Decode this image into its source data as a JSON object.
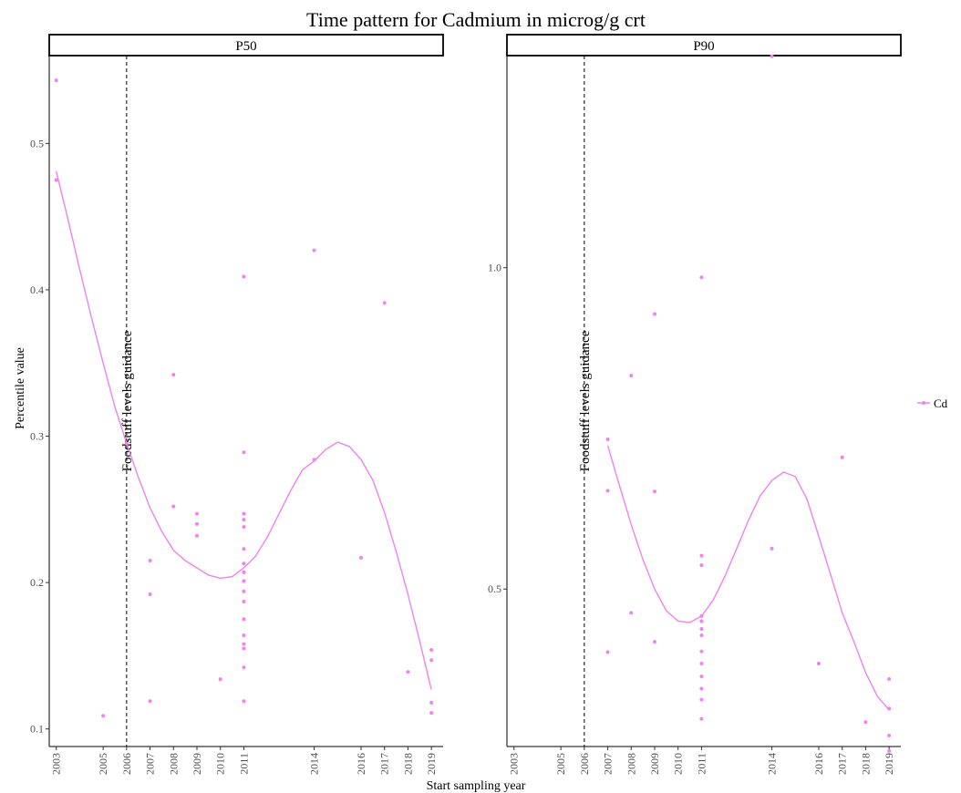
{
  "chart_data": {
    "type": "scatter",
    "title": "Time pattern for Cadmium in microg/g crt",
    "xlabel": "Start sampling year",
    "ylabel": "Percentile value",
    "x_ticks": [
      "2003",
      "2005",
      "2006",
      "2007",
      "2008",
      "2009",
      "2010",
      "2011",
      "2014",
      "2016",
      "2017",
      "2018",
      "2019"
    ],
    "reference_line": {
      "x": 2006,
      "label": "Foodstuff levels guidance",
      "style": "dashed"
    },
    "legend": {
      "position": "right",
      "entries": [
        {
          "name": "Cd",
          "color": "#ee82ee"
        }
      ]
    },
    "series_color": "#ee82ee",
    "panels": [
      {
        "strip": "P50",
        "ylim": [
          0.088,
          0.56
        ],
        "y_ticks": [
          "0.1",
          "0.2",
          "0.3",
          "0.4",
          "0.5"
        ],
        "y_tick_values": [
          0.1,
          0.2,
          0.3,
          0.4,
          0.5
        ],
        "points": [
          [
            2003,
            0.543
          ],
          [
            2003,
            0.475
          ],
          [
            2005,
            0.109
          ],
          [
            2006,
            0.295
          ],
          [
            2007,
            0.215
          ],
          [
            2007,
            0.192
          ],
          [
            2007,
            0.119
          ],
          [
            2008,
            0.342
          ],
          [
            2008,
            0.252
          ],
          [
            2009,
            0.247
          ],
          [
            2009,
            0.24
          ],
          [
            2009,
            0.232
          ],
          [
            2010,
            0.134
          ],
          [
            2011,
            0.409
          ],
          [
            2011,
            0.289
          ],
          [
            2011,
            0.247
          ],
          [
            2011,
            0.243
          ],
          [
            2011,
            0.238
          ],
          [
            2011,
            0.223
          ],
          [
            2011,
            0.213
          ],
          [
            2011,
            0.207
          ],
          [
            2011,
            0.201
          ],
          [
            2011,
            0.194
          ],
          [
            2011,
            0.187
          ],
          [
            2011,
            0.175
          ],
          [
            2011,
            0.164
          ],
          [
            2011,
            0.158
          ],
          [
            2011,
            0.155
          ],
          [
            2011,
            0.142
          ],
          [
            2011,
            0.119
          ],
          [
            2014,
            0.427
          ],
          [
            2014,
            0.284
          ],
          [
            2016,
            0.217
          ],
          [
            2017,
            0.391
          ],
          [
            2018,
            0.139
          ],
          [
            2019,
            0.154
          ],
          [
            2019,
            0.147
          ],
          [
            2019,
            0.118
          ],
          [
            2019,
            0.111
          ]
        ],
        "smooth": [
          [
            2003,
            0.481
          ],
          [
            2003.5,
            0.448
          ],
          [
            2004,
            0.414
          ],
          [
            2004.5,
            0.381
          ],
          [
            2005,
            0.35
          ],
          [
            2005.5,
            0.32
          ],
          [
            2006,
            0.295
          ],
          [
            2006.5,
            0.272
          ],
          [
            2007,
            0.251
          ],
          [
            2007.5,
            0.235
          ],
          [
            2008,
            0.222
          ],
          [
            2008.5,
            0.215
          ],
          [
            2009,
            0.21
          ],
          [
            2009.5,
            0.205
          ],
          [
            2010,
            0.203
          ],
          [
            2010.5,
            0.204
          ],
          [
            2011,
            0.21
          ],
          [
            2011.5,
            0.218
          ],
          [
            2012,
            0.231
          ],
          [
            2012.5,
            0.247
          ],
          [
            2013,
            0.263
          ],
          [
            2013.5,
            0.277
          ],
          [
            2014,
            0.283
          ],
          [
            2014.5,
            0.291
          ],
          [
            2015,
            0.296
          ],
          [
            2015.5,
            0.293
          ],
          [
            2016,
            0.284
          ],
          [
            2016.5,
            0.27
          ],
          [
            2017,
            0.248
          ],
          [
            2017.5,
            0.221
          ],
          [
            2018,
            0.192
          ],
          [
            2018.5,
            0.16
          ],
          [
            2019,
            0.127
          ]
        ]
      },
      {
        "strip": "P90",
        "ylim": [
          0.255,
          1.33
        ],
        "y_ticks": [
          "0.5",
          "1.0"
        ],
        "y_tick_values": [
          0.5,
          1.0
        ],
        "points": [
          [
            2007,
            0.733
          ],
          [
            2007,
            0.653
          ],
          [
            2007,
            0.402
          ],
          [
            2008,
            0.832
          ],
          [
            2008,
            0.463
          ],
          [
            2009,
            0.928
          ],
          [
            2009,
            0.652
          ],
          [
            2009,
            0.418
          ],
          [
            2011,
            0.985
          ],
          [
            2011,
            0.552
          ],
          [
            2011,
            0.537
          ],
          [
            2011,
            0.458
          ],
          [
            2011,
            0.45
          ],
          [
            2011,
            0.438
          ],
          [
            2011,
            0.428
          ],
          [
            2011,
            0.403
          ],
          [
            2011,
            0.384
          ],
          [
            2011,
            0.364
          ],
          [
            2011,
            0.345
          ],
          [
            2011,
            0.328
          ],
          [
            2011,
            0.298
          ],
          [
            2014,
            1.329
          ],
          [
            2014,
            0.563
          ],
          [
            2016,
            0.384
          ],
          [
            2017,
            0.705
          ],
          [
            2018,
            0.293
          ],
          [
            2019,
            0.36
          ],
          [
            2019,
            0.314
          ],
          [
            2019,
            0.272
          ],
          [
            2019,
            0.248
          ]
        ],
        "smooth": [
          [
            2007,
            0.723
          ],
          [
            2007.5,
            0.661
          ],
          [
            2008,
            0.6
          ],
          [
            2008.5,
            0.546
          ],
          [
            2009,
            0.5
          ],
          [
            2009.5,
            0.466
          ],
          [
            2010,
            0.45
          ],
          [
            2010.5,
            0.448
          ],
          [
            2011,
            0.458
          ],
          [
            2011.5,
            0.483
          ],
          [
            2012,
            0.52
          ],
          [
            2012.5,
            0.563
          ],
          [
            2013,
            0.607
          ],
          [
            2013.5,
            0.645
          ],
          [
            2014,
            0.669
          ],
          [
            2014.5,
            0.682
          ],
          [
            2015,
            0.675
          ],
          [
            2015.5,
            0.64
          ],
          [
            2016,
            0.582
          ],
          [
            2016.5,
            0.523
          ],
          [
            2017,
            0.463
          ],
          [
            2017.5,
            0.418
          ],
          [
            2018,
            0.37
          ],
          [
            2018.5,
            0.333
          ],
          [
            2019,
            0.312
          ]
        ]
      }
    ]
  }
}
